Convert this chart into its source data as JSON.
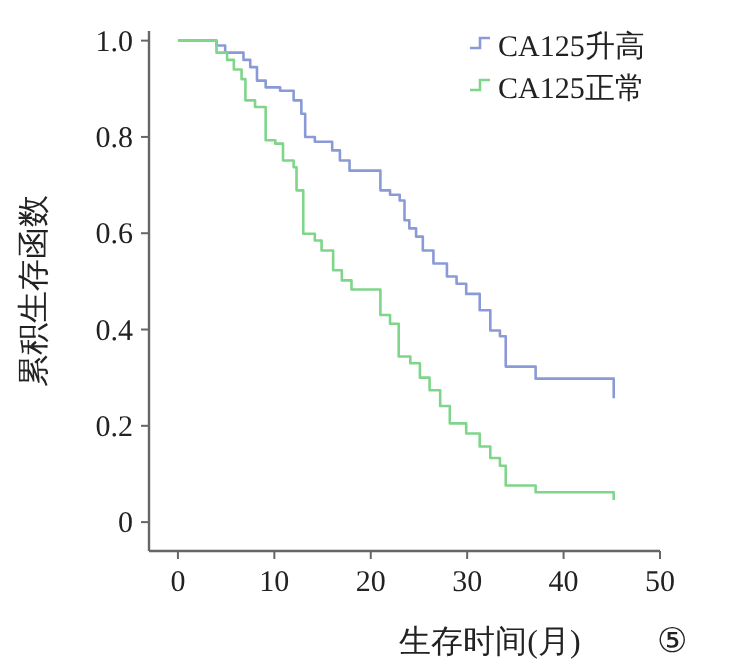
{
  "chart_data": {
    "type": "step",
    "xlabel": "生存时间(月)",
    "ylabel": "累积生存函数",
    "annotations": [
      "⑤"
    ],
    "xlim": [
      -3,
      50
    ],
    "ylim": [
      -0.06,
      1.02
    ],
    "xticks": [
      0,
      10,
      20,
      30,
      40,
      50
    ],
    "yticks": [
      0,
      {
        "value": 0.2,
        "label": "0.2"
      },
      {
        "value": 0.4,
        "label": "0.4"
      },
      {
        "value": 0.6,
        "label": "0.6"
      },
      {
        "value": 0.8,
        "label": "0.8"
      },
      {
        "value": 1,
        "label": "1.0"
      }
    ],
    "legend": "top right",
    "grid": false,
    "series": [
      {
        "name": "CA125升高",
        "color": "#8a9ad6",
        "x": [
          0,
          4.0,
          4.9,
          6.8,
          7.5,
          8.2,
          9.1,
          10.6,
          12.0,
          12.8,
          13.2,
          14.2,
          16.0,
          16.8,
          17.8,
          21.0,
          22.0,
          23.0,
          23.5,
          24.0,
          24.7,
          25.4,
          26.5,
          27.9,
          28.9,
          29.9,
          31.3,
          32.4,
          33.4,
          34.0,
          37.1,
          45.2
        ],
        "values": [
          1,
          0.99,
          0.975,
          0.96,
          0.945,
          0.917,
          0.903,
          0.896,
          0.876,
          0.848,
          0.8,
          0.79,
          0.772,
          0.751,
          0.73,
          0.689,
          0.68,
          0.668,
          0.627,
          0.61,
          0.593,
          0.564,
          0.537,
          0.51,
          0.495,
          0.474,
          0.44,
          0.398,
          0.386,
          0.323,
          0.298,
          0.257
        ]
      },
      {
        "name": "CA125正常",
        "color": "#7fd58a",
        "x": [
          0,
          4.0,
          5.1,
          5.8,
          6.6,
          7.0,
          8.0,
          9.1,
          10.1,
          10.9,
          12.0,
          12.3,
          13.0,
          14.2,
          14.9,
          16.1,
          17.0,
          18.0,
          21.0,
          22.0,
          22.9,
          24.1,
          25.1,
          26.1,
          27.2,
          28.2,
          29.9,
          31.3,
          32.4,
          33.4,
          34.0,
          37.1,
          45.2
        ],
        "values": [
          1,
          0.975,
          0.96,
          0.94,
          0.92,
          0.876,
          0.862,
          0.793,
          0.786,
          0.751,
          0.737,
          0.689,
          0.599,
          0.585,
          0.564,
          0.523,
          0.502,
          0.483,
          0.43,
          0.412,
          0.344,
          0.33,
          0.3,
          0.274,
          0.241,
          0.205,
          0.184,
          0.157,
          0.133,
          0.117,
          0.076,
          0.062,
          0.046
        ]
      }
    ]
  }
}
